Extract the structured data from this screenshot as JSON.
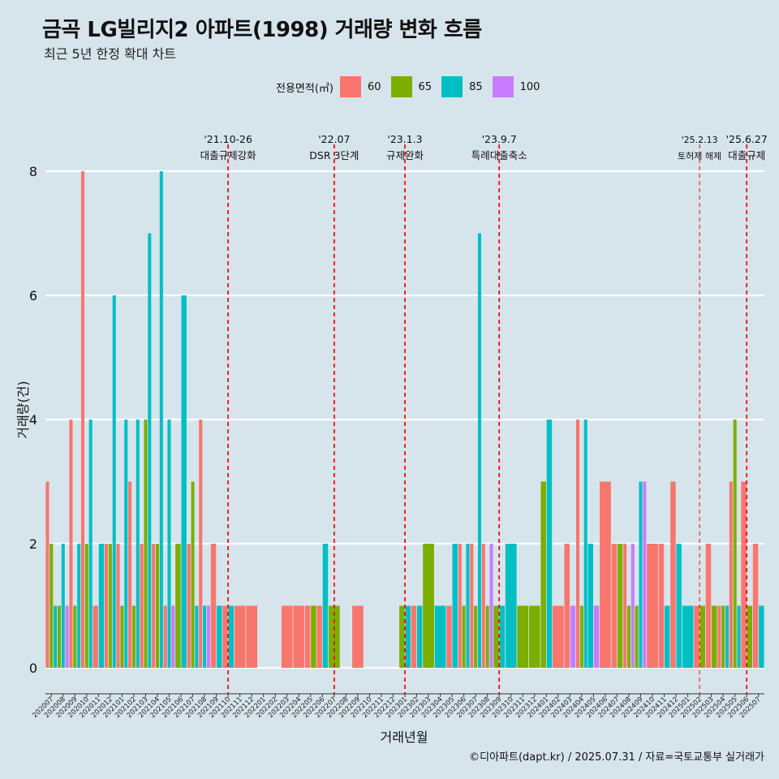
{
  "title": "금곡 LG빌리지2 아파트(1998) 거래량 변화 흐름",
  "subtitle": "최근 5년 한정 확대 차트",
  "caption": "©디아파트(dapt.kr) / 2025.07.31 / 자료=국토교통부 실거래가",
  "legend": {
    "title": "전용면적(㎡)",
    "items": [
      {
        "label": "60",
        "color": "#f8766d"
      },
      {
        "label": "65",
        "color": "#7cae00"
      },
      {
        "label": "85",
        "color": "#00bfc4"
      },
      {
        "label": "100",
        "color": "#c77cff"
      }
    ]
  },
  "chart_data": {
    "type": "bar",
    "title": "금곡 LG빌리지2 아파트(1998) 거래량 변화 흐름",
    "xlabel": "거래년월",
    "ylabel": "거래량(건)",
    "ylim": [
      0,
      8
    ],
    "yticks": [
      0,
      2,
      4,
      6,
      8
    ],
    "series_names": [
      "60",
      "65",
      "85",
      "100"
    ],
    "months": [
      "202007",
      "202008",
      "202009",
      "202010",
      "202011",
      "202012",
      "202101",
      "202102",
      "202103",
      "202104",
      "202105",
      "202106",
      "202107",
      "202108",
      "202109",
      "202110",
      "202111",
      "202112",
      "202201",
      "202202",
      "202203",
      "202204",
      "202205",
      "202206",
      "202207",
      "202208",
      "202209",
      "202210",
      "202211",
      "202212",
      "202301",
      "202302",
      "202303",
      "202304",
      "202305",
      "202306",
      "202307",
      "202308",
      "202309",
      "202310",
      "202311",
      "202312",
      "202401",
      "202402",
      "202403",
      "202404",
      "202405",
      "202406",
      "202407",
      "202408",
      "202409",
      "202410",
      "202411",
      "202412",
      "202501",
      "202502",
      "202503",
      "202504",
      "202505",
      "202506",
      "202507"
    ],
    "values": {
      "202007": {
        "60": 3,
        "65": 2,
        "85": 1
      },
      "202008": {
        "65": 1,
        "85": 2,
        "100": 1
      },
      "202009": {
        "60": 4,
        "65": 1,
        "85": 2
      },
      "202010": {
        "60": 8,
        "65": 2,
        "85": 4
      },
      "202011": {
        "60": 1,
        "85": 2
      },
      "202012": {
        "60": 2,
        "65": 2,
        "85": 6
      },
      "202101": {
        "60": 2,
        "65": 1,
        "85": 4
      },
      "202102": {
        "60": 3,
        "65": 1,
        "85": 4
      },
      "202103": {
        "60": 2,
        "65": 4,
        "85": 7
      },
      "202104": {
        "60": 2,
        "65": 2,
        "85": 8
      },
      "202105": {
        "60": 1,
        "85": 4,
        "100": 1
      },
      "202106": {
        "65": 2,
        "85": 6
      },
      "202107": {
        "60": 2,
        "65": 3,
        "85": 1
      },
      "202108": {
        "60": 4,
        "85": 1,
        "100": 1
      },
      "202109": {
        "60": 2,
        "85": 1
      },
      "202110": {
        "60": 1,
        "85": 1
      },
      "202111": {
        "60": 1
      },
      "202112": {
        "60": 1
      },
      "202203": {
        "60": 1
      },
      "202204": {
        "60": 1
      },
      "202205": {
        "60": 1,
        "65": 1
      },
      "202206": {
        "60": 1,
        "85": 2
      },
      "202207": {
        "65": 1
      },
      "202209": {
        "60": 1
      },
      "202301": {
        "65": 1,
        "85": 1
      },
      "202302": {
        "60": 1,
        "85": 1
      },
      "202303": {
        "65": 2
      },
      "202304": {
        "85": 1
      },
      "202305": {
        "60": 1,
        "85": 2
      },
      "202306": {
        "60": 2,
        "65": 1,
        "85": 2
      },
      "202307": {
        "60": 2,
        "65": 1,
        "85": 7
      },
      "202308": {
        "60": 2,
        "65": 1,
        "100": 2
      },
      "202309": {
        "65": 1,
        "85": 1
      },
      "202310": {
        "85": 2
      },
      "202311": {
        "65": 1
      },
      "202312": {
        "65": 1
      },
      "202401": {
        "65": 3,
        "85": 4
      },
      "202402": {
        "60": 1
      },
      "202403": {
        "60": 2,
        "100": 1
      },
      "202404": {
        "60": 4,
        "65": 1,
        "85": 4
      },
      "202405": {
        "85": 2,
        "100": 1
      },
      "202406": {
        "60": 3
      },
      "202407": {
        "60": 2,
        "65": 2
      },
      "202408": {
        "60": 2,
        "65": 1,
        "100": 2
      },
      "202409": {
        "65": 1,
        "85": 3,
        "100": 3
      },
      "202410": {
        "60": 2
      },
      "202411": {
        "60": 2,
        "85": 1
      },
      "202412": {
        "60": 3,
        "85": 2
      },
      "202501": {
        "85": 1
      },
      "202502": {
        "60": 1,
        "65": 1
      },
      "202503": {
        "60": 2,
        "65": 1
      },
      "202504": {
        "60": 1,
        "65": 1,
        "85": 1
      },
      "202505": {
        "60": 3,
        "65": 4,
        "85": 1
      },
      "202506": {
        "60": 3,
        "65": 1
      },
      "202507": {
        "60": 2,
        "85": 1
      }
    },
    "events": [
      {
        "date": "202110",
        "label1": "'21.10-26",
        "label2": "대출규제강화",
        "style": "bold"
      },
      {
        "date": "202207",
        "label1": "'22.07",
        "label2": "DSR 3단계",
        "style": "bold"
      },
      {
        "date": "202301",
        "label1": "'23.1.3",
        "label2": "규제완화",
        "style": "bold"
      },
      {
        "date": "202309",
        "label1": "'23.9.7",
        "label2": "특례대출축소",
        "style": "bold"
      },
      {
        "date": "202502",
        "label1": "'25.2.13",
        "label2": "토허제 해제",
        "style": "thin"
      },
      {
        "date": "202506",
        "label1": "'25.6.27",
        "label2": "대출규제",
        "style": "bold"
      }
    ]
  }
}
